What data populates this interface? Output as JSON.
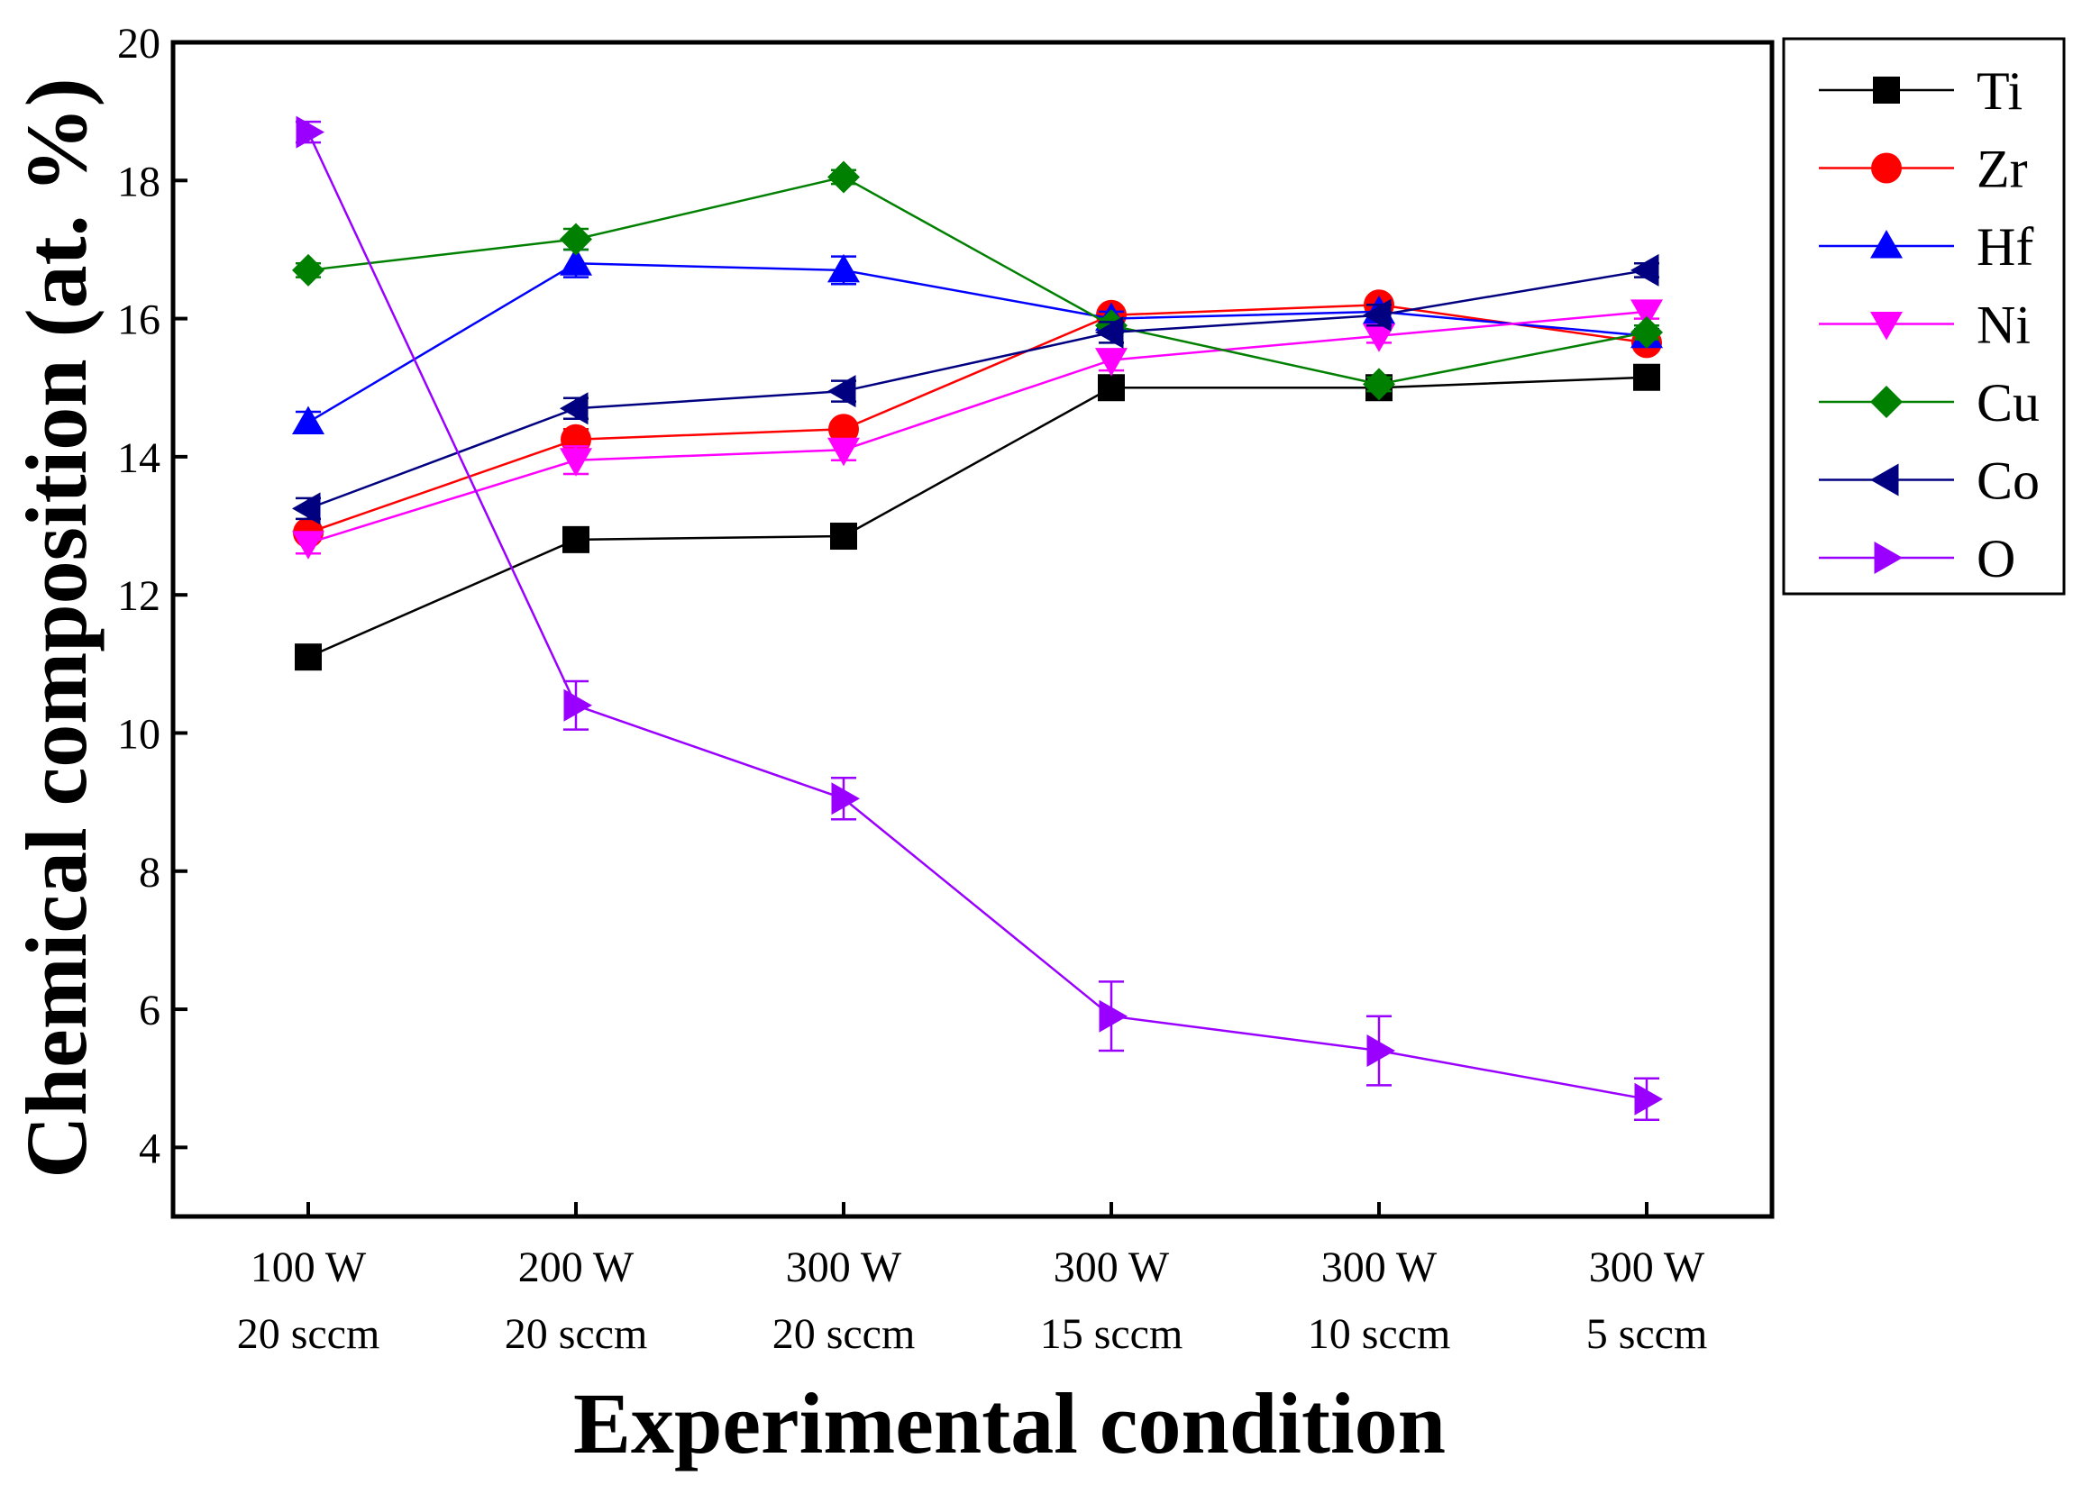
{
  "chart_data": {
    "type": "line",
    "title": "",
    "xlabel": "Experimental condition",
    "ylabel": "Chemical composition (at. %)",
    "ylim": [
      3,
      20
    ],
    "yticks": [
      4,
      6,
      8,
      10,
      12,
      14,
      16,
      18,
      20
    ],
    "categories": [
      [
        "100 W",
        "20 sccm"
      ],
      [
        "200 W",
        "20 sccm"
      ],
      [
        "300 W",
        "20 sccm"
      ],
      [
        "300 W",
        "15 sccm"
      ],
      [
        "300 W",
        "10 sccm"
      ],
      [
        "300 W",
        "5 sccm"
      ]
    ],
    "legend_position": "top-right, outside plot",
    "series": [
      {
        "name": "Ti",
        "color": "#000000",
        "marker": "square",
        "values": [
          11.1,
          12.8,
          12.85,
          15.0,
          15.0,
          15.15
        ],
        "errors": [
          0.1,
          0.1,
          0.1,
          0.1,
          0.1,
          0.1
        ]
      },
      {
        "name": "Zr",
        "color": "#ff0000",
        "marker": "circle",
        "values": [
          12.9,
          14.25,
          14.4,
          16.05,
          16.2,
          15.65
        ],
        "errors": [
          0.1,
          0.15,
          0.1,
          0.1,
          0.1,
          0.1
        ]
      },
      {
        "name": "Hf",
        "color": "#0000ff",
        "marker": "triangle-up",
        "values": [
          14.5,
          16.8,
          16.7,
          16.0,
          16.1,
          15.75
        ],
        "errors": [
          0.15,
          0.2,
          0.2,
          0.1,
          0.1,
          0.1
        ]
      },
      {
        "name": "Ni",
        "color": "#ff00ff",
        "marker": "triangle-down",
        "values": [
          12.75,
          13.95,
          14.1,
          15.4,
          15.75,
          16.1
        ],
        "errors": [
          0.15,
          0.2,
          0.15,
          0.15,
          0.1,
          0.1
        ]
      },
      {
        "name": "Cu",
        "color": "#008000",
        "marker": "diamond",
        "values": [
          16.7,
          17.15,
          18.05,
          15.9,
          15.05,
          15.8
        ],
        "errors": [
          0.1,
          0.15,
          0.1,
          0.1,
          0.1,
          0.1
        ]
      },
      {
        "name": "Co",
        "color": "#000080",
        "marker": "triangle-left",
        "values": [
          13.25,
          14.7,
          14.95,
          15.8,
          16.05,
          16.7
        ],
        "errors": [
          0.15,
          0.15,
          0.15,
          0.15,
          0.15,
          0.1
        ]
      },
      {
        "name": "O",
        "color": "#9900ff",
        "marker": "triangle-right",
        "values": [
          18.7,
          10.4,
          9.05,
          5.9,
          5.4,
          4.7
        ],
        "errors": [
          0.15,
          0.35,
          0.3,
          0.5,
          0.5,
          0.3
        ]
      }
    ]
  }
}
